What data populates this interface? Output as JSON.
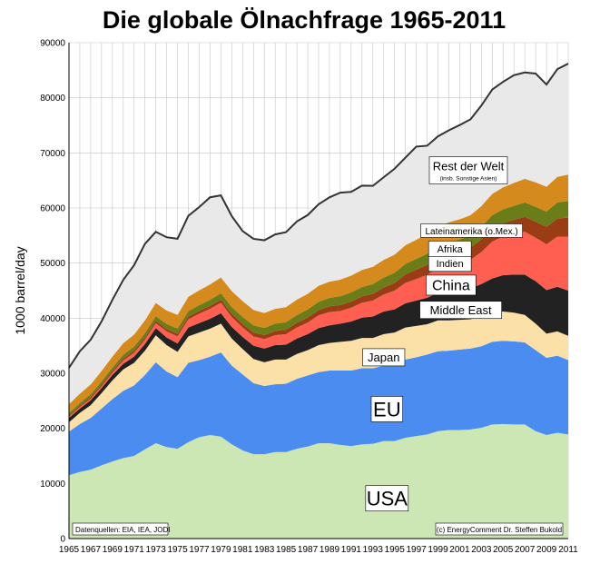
{
  "chart_data": {
    "type": "area",
    "stacked": true,
    "title": "Die globale Ölnachfrage 1965-2011",
    "ylabel": "1000 barrel/day",
    "xlabel": "",
    "ylim": [
      0,
      90000
    ],
    "yticks": [
      0,
      10000,
      20000,
      30000,
      40000,
      50000,
      60000,
      70000,
      80000,
      90000
    ],
    "xticks": [
      1965,
      1967,
      1969,
      1971,
      1973,
      1975,
      1977,
      1979,
      1981,
      1983,
      1985,
      1987,
      1989,
      1991,
      1993,
      1995,
      1997,
      1999,
      2001,
      2003,
      2005,
      2007,
      2009,
      2011
    ],
    "grid": true,
    "x": [
      1965,
      1966,
      1967,
      1968,
      1969,
      1970,
      1971,
      1972,
      1973,
      1974,
      1975,
      1976,
      1977,
      1978,
      1979,
      1980,
      1981,
      1982,
      1983,
      1984,
      1985,
      1986,
      1987,
      1988,
      1989,
      1990,
      1991,
      1992,
      1993,
      1994,
      1995,
      1996,
      1997,
      1998,
      1999,
      2000,
      2001,
      2002,
      2003,
      2004,
      2005,
      2006,
      2007,
      2008,
      2009,
      2010,
      2011
    ],
    "series": [
      {
        "name": "USA",
        "color": "#cce6b4",
        "values": [
          11500,
          12100,
          12500,
          13300,
          14000,
          14600,
          15000,
          16200,
          17300,
          16600,
          16300,
          17500,
          18400,
          18800,
          18500,
          17100,
          16000,
          15300,
          15300,
          15700,
          15700,
          16300,
          16700,
          17300,
          17300,
          17000,
          16800,
          17100,
          17200,
          17700,
          17700,
          18300,
          18600,
          18900,
          19500,
          19700,
          19700,
          19800,
          20100,
          20700,
          20800,
          20700,
          20700,
          19500,
          18800,
          19200,
          18900
        ]
      },
      {
        "name": "EU",
        "color": "#4a8cf0",
        "values": [
          7900,
          8700,
          9400,
          10300,
          11300,
          12200,
          12800,
          13500,
          14700,
          13700,
          13000,
          14400,
          14000,
          14200,
          15300,
          14300,
          13800,
          12900,
          12400,
          12300,
          12400,
          12700,
          12900,
          12900,
          13200,
          13500,
          13700,
          13800,
          13700,
          13700,
          13900,
          14200,
          14300,
          14500,
          14500,
          14400,
          14600,
          14700,
          14800,
          15000,
          15100,
          15100,
          14900,
          14700,
          14000,
          14000,
          13500
        ]
      },
      {
        "name": "Japan",
        "color": "#fbe0a8",
        "values": [
          1700,
          2000,
          2300,
          2800,
          3400,
          3900,
          4100,
          4400,
          4900,
          4800,
          4600,
          4800,
          5000,
          5100,
          5200,
          4900,
          4600,
          4400,
          4300,
          4500,
          4400,
          4500,
          4600,
          4900,
          5000,
          5200,
          5400,
          5500,
          5500,
          5700,
          5800,
          5800,
          5700,
          5500,
          5600,
          5500,
          5400,
          5300,
          5400,
          5300,
          5300,
          5200,
          5000,
          4800,
          4400,
          4400,
          4400
        ]
      },
      {
        "name": "Middle East",
        "color": "#222222",
        "values": [
          800,
          800,
          900,
          900,
          1000,
          1000,
          1100,
          1200,
          1300,
          1400,
          1500,
          1600,
          1700,
          1800,
          1900,
          2100,
          2200,
          2400,
          2500,
          2600,
          2700,
          2800,
          2900,
          3100,
          3200,
          3300,
          3500,
          3700,
          3900,
          4100,
          4200,
          4400,
          4600,
          4800,
          5000,
          5200,
          5400,
          5600,
          5900,
          6200,
          6600,
          6900,
          7300,
          7700,
          7900,
          8100,
          8200
        ]
      },
      {
        "name": "China",
        "color": "#ff5f50",
        "values": [
          250,
          280,
          300,
          350,
          400,
          600,
          700,
          800,
          900,
          1100,
          1300,
          1500,
          1700,
          1800,
          1900,
          1800,
          1700,
          1700,
          1700,
          1800,
          1900,
          2000,
          2100,
          2300,
          2400,
          2300,
          2500,
          2700,
          2900,
          3100,
          3400,
          3700,
          3900,
          4200,
          4400,
          4800,
          4900,
          5200,
          5800,
          6700,
          7000,
          7400,
          7800,
          7900,
          8300,
          9100,
          9800
        ]
      },
      {
        "name": "Indien",
        "color": "#9a3c14",
        "values": [
          250,
          270,
          290,
          310,
          330,
          350,
          380,
          400,
          420,
          440,
          460,
          480,
          510,
          540,
          580,
          620,
          660,
          700,
          740,
          780,
          820,
          870,
          920,
          980,
          1030,
          1090,
          1120,
          1160,
          1220,
          1280,
          1380,
          1540,
          1690,
          1800,
          1900,
          2100,
          2150,
          2200,
          2300,
          2400,
          2450,
          2550,
          2700,
          2900,
          3150,
          3300,
          3450
        ]
      },
      {
        "name": "Afrika",
        "color": "#6b7d18",
        "values": [
          400,
          450,
          500,
          550,
          600,
          700,
          750,
          800,
          850,
          900,
          950,
          1000,
          1050,
          1100,
          1150,
          1200,
          1250,
          1300,
          1300,
          1320,
          1350,
          1400,
          1450,
          1500,
          1550,
          1600,
          1650,
          1700,
          1750,
          1800,
          1850,
          1900,
          1950,
          2000,
          2050,
          2100,
          2150,
          2200,
          2300,
          2400,
          2500,
          2550,
          2600,
          2700,
          2800,
          2900,
          3000
        ]
      },
      {
        "name": "Lateinamerika (o.Mex.)",
        "color": "#d48a1c",
        "values": [
          1600,
          1700,
          1800,
          1900,
          2000,
          2100,
          2200,
          2300,
          2400,
          2450,
          2500,
          2600,
          2700,
          2800,
          2850,
          2900,
          2900,
          2800,
          2700,
          2700,
          2750,
          2800,
          2850,
          2900,
          2950,
          3000,
          3050,
          3100,
          3150,
          3200,
          3300,
          3400,
          3500,
          3600,
          3600,
          3600,
          3650,
          3700,
          3750,
          3850,
          4000,
          4150,
          4300,
          4450,
          4500,
          4650,
          4800
        ]
      },
      {
        "name": "Rest der Welt",
        "color": "#e9e9e9",
        "values": [
          6600,
          7700,
          8100,
          9000,
          10300,
          11500,
          12600,
          13900,
          12900,
          13300,
          13800,
          14700,
          15100,
          15800,
          14900,
          13600,
          12700,
          12900,
          13200,
          13500,
          13600,
          14200,
          14300,
          14800,
          15300,
          15800,
          15200,
          15300,
          14700,
          15000,
          15600,
          15900,
          16900,
          16000,
          16450,
          16700,
          17100,
          17400,
          18250,
          18950,
          19150,
          19550,
          19300,
          19750,
          18550,
          19550,
          20150
        ]
      }
    ],
    "annotations": {
      "sources": "Datenquellen: EIA, IEA, JODI",
      "credit": "(c) EnergyComment Dr. Steffen Bukold",
      "rest_sub": "(insb. Sonstige Asien)"
    }
  }
}
